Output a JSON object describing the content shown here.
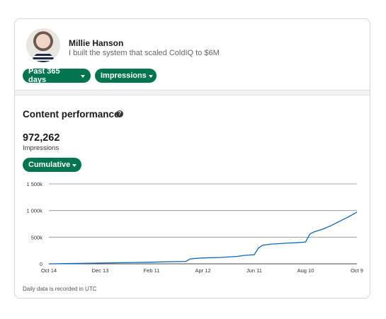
{
  "profile": {
    "name": "Millie Hanson",
    "headline": "I built the system that scaled ColdIQ to $6M"
  },
  "filters": {
    "time_range": "Past 365 days",
    "metric": "Impressions"
  },
  "section": {
    "title": "Content performance",
    "help_glyph": "?"
  },
  "summary": {
    "value": "972,262",
    "label": "Impressions"
  },
  "view_mode": "Cumulative",
  "chart_data": {
    "type": "line",
    "x_tick_labels": [
      "Oct 14",
      "Dec 13",
      "Feb 11",
      "Apr 12",
      "Jun 11",
      "Aug 10",
      "Oct 9"
    ],
    "y_tick_labels": [
      "0",
      "500k",
      "1 000k",
      "1 500k"
    ],
    "ylim": [
      0,
      1500000
    ],
    "grid": true,
    "series": [
      {
        "color": "#0a66c2",
        "x": [
          0,
          20,
          40,
          60,
          80,
          100,
          120,
          140,
          160,
          165,
          170,
          180,
          200,
          220,
          230,
          240,
          245,
          250,
          260,
          270,
          280,
          290,
          300,
          305,
          310,
          320,
          330,
          340,
          350,
          360
        ],
        "values": [
          0,
          4000,
          9000,
          15000,
          20000,
          25000,
          30000,
          40000,
          45000,
          90000,
          100000,
          110000,
          120000,
          140000,
          160000,
          170000,
          300000,
          350000,
          370000,
          380000,
          390000,
          395000,
          410000,
          560000,
          600000,
          650000,
          720000,
          800000,
          880000,
          972262
        ]
      }
    ]
  },
  "footnote": "Daily data is recorded in UTC",
  "colors": {
    "accent": "#01754f",
    "line": "#0a66c2",
    "grid": "#555555"
  },
  "icons": {
    "avatar": "profile-photo",
    "dropdown": "caret-down-icon",
    "help": "question-circle-icon"
  }
}
